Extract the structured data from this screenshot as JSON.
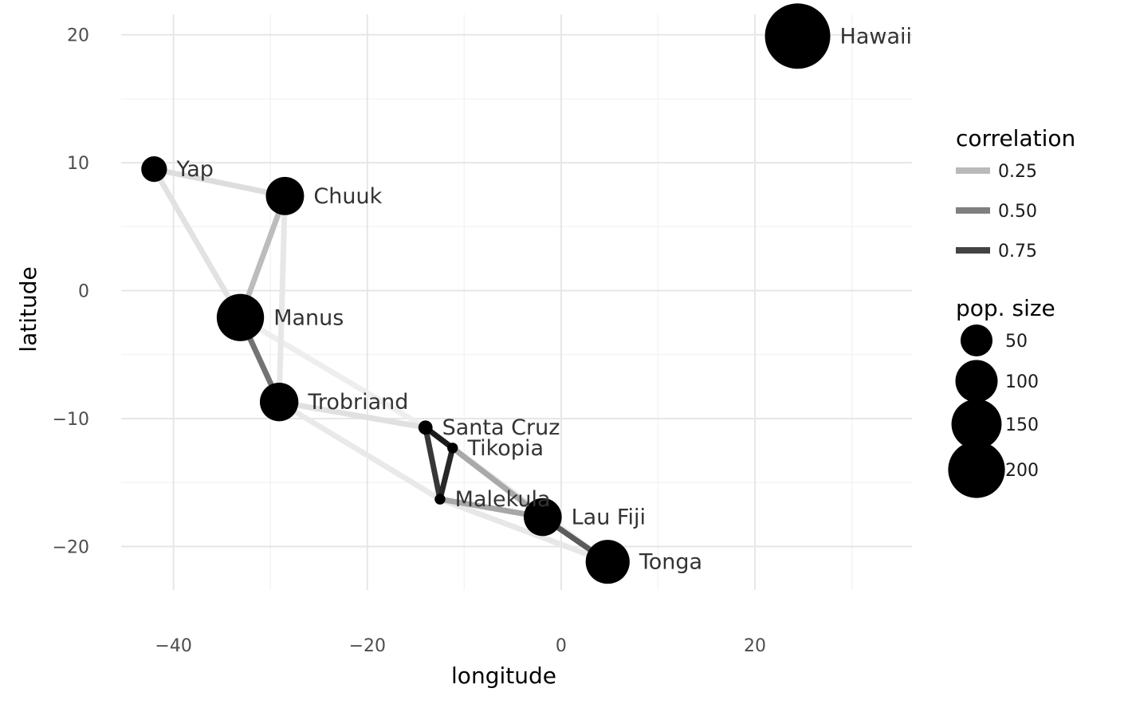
{
  "chart_data": {
    "type": "scatter",
    "xlabel": "longitude",
    "ylabel": "latitude",
    "xlim": [
      -45.4,
      36.2
    ],
    "ylim": [
      -23.4,
      21.6
    ],
    "x_ticks": [
      {
        "value": -40,
        "label": "−40"
      },
      {
        "value": -20,
        "label": "−20"
      },
      {
        "value": 0,
        "label": "0"
      },
      {
        "value": 20,
        "label": "20"
      }
    ],
    "y_ticks": [
      {
        "value": -20,
        "label": "−20"
      },
      {
        "value": -10,
        "label": "−10"
      },
      {
        "value": 0,
        "label": "0"
      },
      {
        "value": 10,
        "label": "10"
      },
      {
        "value": 20,
        "label": "20"
      }
    ],
    "grid": true,
    "points": [
      {
        "name": "Malekula",
        "lon": -12.5,
        "lat": -16.3,
        "pop": 1
      },
      {
        "name": "Tikopia",
        "lon": -11.2,
        "lat": -12.3,
        "pop": 1
      },
      {
        "name": "Santa Cruz",
        "lon": -14.0,
        "lat": -10.7,
        "pop": 4
      },
      {
        "name": "Yap",
        "lon": -42.0,
        "lat": 9.5,
        "pop": 28
      },
      {
        "name": "Lau Fiji",
        "lon": -1.9,
        "lat": -17.7,
        "pop": 77
      },
      {
        "name": "Trobriand",
        "lon": -29.1,
        "lat": -8.7,
        "pop": 80
      },
      {
        "name": "Chuuk",
        "lon": -28.5,
        "lat": 7.4,
        "pop": 78
      },
      {
        "name": "Manus",
        "lon": -33.1,
        "lat": -2.1,
        "pop": 131
      },
      {
        "name": "Tonga",
        "lon": 4.8,
        "lat": -21.2,
        "pop": 110
      },
      {
        "name": "Hawaii",
        "lon": 24.4,
        "lat": 19.9,
        "pop": 275
      }
    ],
    "connections": [
      {
        "from": "Malekula",
        "to": "Tikopia",
        "correlation": 0.87
      },
      {
        "from": "Malekula",
        "to": "Santa Cruz",
        "correlation": 0.8
      },
      {
        "from": "Tikopia",
        "to": "Santa Cruz",
        "correlation": 0.92
      },
      {
        "from": "Trobriand",
        "to": "Manus",
        "correlation": 0.55
      },
      {
        "from": "Lau Fiji",
        "to": "Tonga",
        "correlation": 0.65
      },
      {
        "from": "Chuuk",
        "to": "Manus",
        "correlation": 0.24
      },
      {
        "from": "Malekula",
        "to": "Lau Fiji",
        "correlation": 0.33
      },
      {
        "from": "Tikopia",
        "to": "Lau Fiji",
        "correlation": 0.32
      },
      {
        "from": "Yap",
        "to": "Chuuk",
        "correlation": 0.1
      },
      {
        "from": "Yap",
        "to": "Manus",
        "correlation": 0.08
      },
      {
        "from": "Trobriand",
        "to": "Santa Cruz",
        "correlation": 0.09
      },
      {
        "from": "Chuuk",
        "to": "Trobriand",
        "correlation": 0.06
      },
      {
        "from": "Malekula",
        "to": "Tonga",
        "correlation": 0.06
      },
      {
        "from": "Trobriand",
        "to": "Malekula",
        "correlation": 0.05
      },
      {
        "from": "Tonga",
        "to": "Santa Cruz",
        "correlation": 0.04
      },
      {
        "from": "Manus",
        "to": "Santa Cruz",
        "correlation": 0.03
      }
    ],
    "legend": {
      "placement": "right",
      "correlation": {
        "title": "correlation",
        "items": [
          {
            "label": "0.25",
            "value": 0.25
          },
          {
            "label": "0.50",
            "value": 0.5
          },
          {
            "label": "0.75",
            "value": 0.75
          }
        ]
      },
      "pop_size": {
        "title": "pop. size",
        "items": [
          {
            "label": "50",
            "value": 50
          },
          {
            "label": "100",
            "value": 100
          },
          {
            "label": "150",
            "value": 150
          },
          {
            "label": "200",
            "value": 200
          }
        ]
      }
    }
  }
}
